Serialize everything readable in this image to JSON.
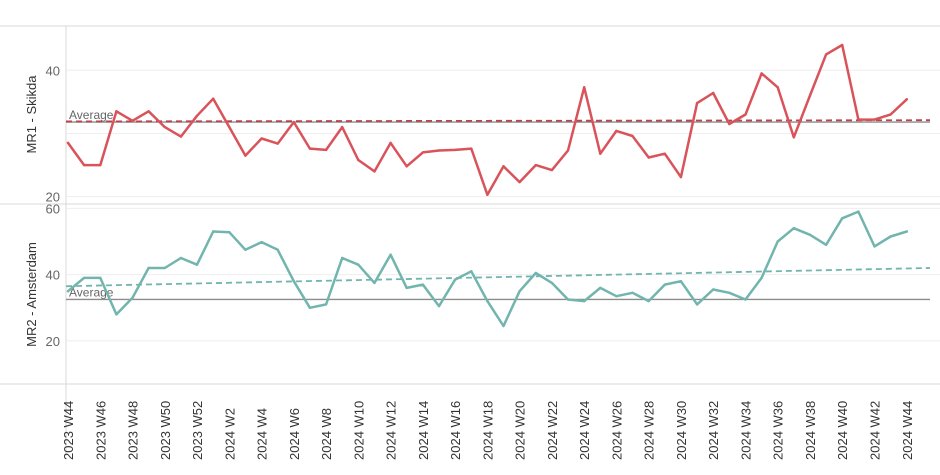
{
  "chart_data": {
    "type": "line",
    "x_tick_labels": [
      "2023 W44",
      "2023 W46",
      "2023 W48",
      "2023 W50",
      "2023 W52",
      "2024 W2",
      "2024 W4",
      "2024 W6",
      "2024 W8",
      "2024 W10",
      "2024 W12",
      "2024 W14",
      "2024 W16",
      "2024 W18",
      "2024 W20",
      "2024 W22",
      "2024 W24",
      "2024 W26",
      "2024 W28",
      "2024 W30",
      "2024 W32",
      "2024 W34",
      "2024 W36",
      "2024 W38",
      "2024 W40",
      "2024 W42",
      "2024 W44"
    ],
    "panels": [
      {
        "ylabel": "MR1 - Skikda",
        "ylim": [
          19,
          47
        ],
        "yticks": [
          20,
          30,
          40
        ],
        "ytick_labels": [
          "20",
          "",
          "40"
        ],
        "color": "#d9535a",
        "trend_color": "#b8454d",
        "trend": [
          31.9,
          32.1
        ],
        "reference_value": 31.8,
        "reference_label": "Average",
        "values": [
          28.5,
          25,
          25,
          33.5,
          32,
          33.5,
          31,
          29.5,
          32.8,
          35.5,
          31,
          26.5,
          29.2,
          28.4,
          31.8,
          27.6,
          27.4,
          31,
          25.8,
          24,
          28.5,
          24.8,
          27,
          27.3,
          27.4,
          27.6,
          20.3,
          24.8,
          22.3,
          25,
          24.2,
          27.3,
          37.3,
          26.8,
          30.4,
          29.6,
          26.2,
          26.8,
          23.1,
          34.8,
          36.4,
          31.5,
          33,
          39.5,
          37.3,
          29.4,
          36,
          42.5,
          44,
          32.2,
          32.2,
          33,
          35.4
        ]
      },
      {
        "ylabel": "MR2 - Amsterdam",
        "ylim": [
          7,
          61
        ],
        "yticks": [
          20,
          40,
          60
        ],
        "ytick_labels": [
          "20",
          "40",
          "60"
        ],
        "color": "#72b5ae",
        "trend_color": "#72b5ae",
        "trend": [
          36.5,
          42
        ],
        "reference_value": 32.5,
        "reference_label": "Average",
        "values": [
          35,
          39,
          39,
          28,
          33,
          42,
          42,
          45,
          43,
          53,
          52.8,
          47.5,
          49.8,
          47.5,
          38,
          30,
          31,
          45,
          43,
          37.5,
          46,
          36,
          37,
          30.5,
          38.5,
          41,
          32,
          24.5,
          35,
          40.5,
          37.5,
          32.5,
          32,
          36,
          33.5,
          34.5,
          32,
          37,
          38,
          31,
          35.5,
          34.5,
          32.5,
          39,
          50,
          54,
          52,
          49,
          57,
          59,
          48.5,
          51.5,
          53
        ]
      }
    ]
  }
}
